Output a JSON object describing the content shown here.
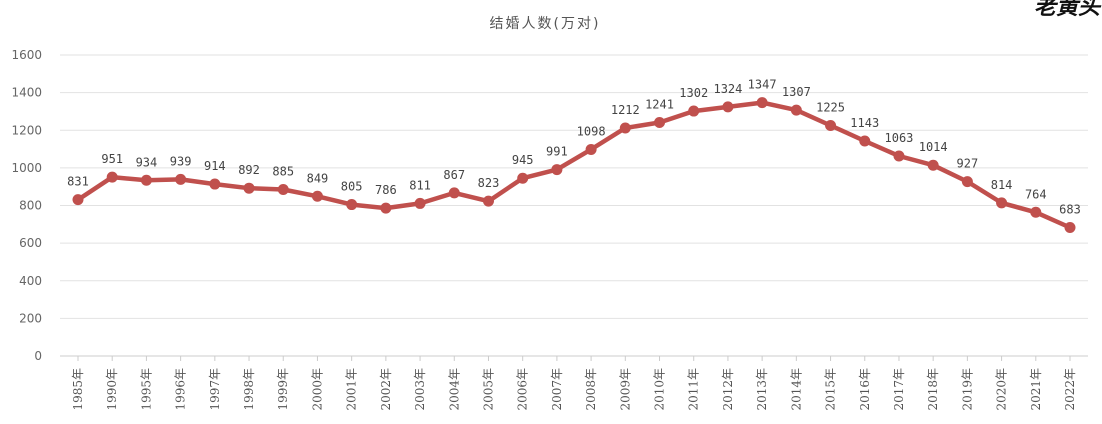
{
  "watermark": "老黄头",
  "chart_data": {
    "type": "line",
    "title": "结婚人数(万对)",
    "xlabel": "",
    "ylabel": "",
    "ylim": [
      0,
      1600
    ],
    "yticks": [
      0,
      200,
      400,
      600,
      800,
      1000,
      1200,
      1400,
      1600
    ],
    "grid": true,
    "legend": "none",
    "categories": [
      "1985年",
      "1990年",
      "1995年",
      "1996年",
      "1997年",
      "1998年",
      "1999年",
      "2000年",
      "2001年",
      "2002年",
      "2003年",
      "2004年",
      "2005年",
      "2006年",
      "2007年",
      "2008年",
      "2009年",
      "2010年",
      "2011年",
      "2012年",
      "2013年",
      "2014年",
      "2015年",
      "2016年",
      "2017年",
      "2018年",
      "2019年",
      "2020年",
      "2021年",
      "2022年"
    ],
    "series": [
      {
        "name": "",
        "color": "#c0504d",
        "values": [
          831,
          951,
          934,
          939,
          914,
          892,
          885,
          849,
          805,
          786,
          811,
          867,
          823,
          945,
          991,
          1098,
          1212,
          1241,
          1302,
          1324,
          1347,
          1307,
          1225,
          1143,
          1063,
          1014,
          927,
          814,
          764,
          683
        ]
      }
    ]
  }
}
